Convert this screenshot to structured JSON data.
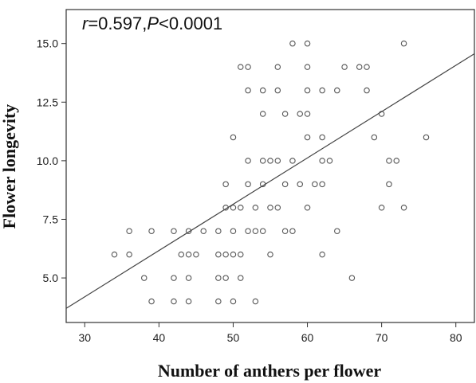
{
  "chart_data": {
    "type": "scatter",
    "annotation": {
      "r_label": "r",
      "r_value": "=0.597,",
      "p_label": "P",
      "p_value": "<0.0001"
    },
    "xlabel": "Number of anthers per flower",
    "ylabel": "Flower longevity",
    "xlim": [
      27.5,
      82.5
    ],
    "ylim": [
      3.1,
      16.45
    ],
    "xticks": [
      30,
      40,
      50,
      60,
      70,
      80
    ],
    "xtick_labels": [
      "30",
      "40",
      "50",
      "60",
      "70",
      "80"
    ],
    "yticks": [
      5.0,
      7.5,
      10.0,
      12.5,
      15.0
    ],
    "ytick_labels": [
      "5.0",
      "7.5",
      "10.0",
      "12.5",
      "15.0"
    ],
    "grid": false,
    "marker": "open-circle",
    "marker_color": "#555555",
    "regression_line": {
      "intercept": -1.73,
      "slope": 0.1975,
      "color": "#444444"
    },
    "points": [
      {
        "x": 58,
        "y": 15
      },
      {
        "x": 60,
        "y": 15
      },
      {
        "x": 73,
        "y": 15
      },
      {
        "x": 51,
        "y": 14
      },
      {
        "x": 52,
        "y": 14
      },
      {
        "x": 56,
        "y": 14
      },
      {
        "x": 60,
        "y": 14
      },
      {
        "x": 65,
        "y": 14
      },
      {
        "x": 67,
        "y": 14
      },
      {
        "x": 68,
        "y": 14
      },
      {
        "x": 52,
        "y": 13
      },
      {
        "x": 54,
        "y": 13
      },
      {
        "x": 56,
        "y": 13
      },
      {
        "x": 60,
        "y": 13
      },
      {
        "x": 62,
        "y": 13
      },
      {
        "x": 64,
        "y": 13
      },
      {
        "x": 68,
        "y": 13
      },
      {
        "x": 54,
        "y": 12
      },
      {
        "x": 57,
        "y": 12
      },
      {
        "x": 59,
        "y": 12
      },
      {
        "x": 60,
        "y": 12
      },
      {
        "x": 70,
        "y": 12
      },
      {
        "x": 50,
        "y": 11
      },
      {
        "x": 60,
        "y": 11
      },
      {
        "x": 62,
        "y": 11
      },
      {
        "x": 69,
        "y": 11
      },
      {
        "x": 76,
        "y": 11
      },
      {
        "x": 52,
        "y": 10
      },
      {
        "x": 54,
        "y": 10
      },
      {
        "x": 55,
        "y": 10
      },
      {
        "x": 56,
        "y": 10
      },
      {
        "x": 58,
        "y": 10
      },
      {
        "x": 62,
        "y": 10
      },
      {
        "x": 63,
        "y": 10
      },
      {
        "x": 71,
        "y": 10
      },
      {
        "x": 72,
        "y": 10
      },
      {
        "x": 49,
        "y": 9
      },
      {
        "x": 52,
        "y": 9
      },
      {
        "x": 54,
        "y": 9
      },
      {
        "x": 57,
        "y": 9
      },
      {
        "x": 59,
        "y": 9
      },
      {
        "x": 61,
        "y": 9
      },
      {
        "x": 62,
        "y": 9
      },
      {
        "x": 71,
        "y": 9
      },
      {
        "x": 49,
        "y": 8
      },
      {
        "x": 50,
        "y": 8
      },
      {
        "x": 51,
        "y": 8
      },
      {
        "x": 53,
        "y": 8
      },
      {
        "x": 55,
        "y": 8
      },
      {
        "x": 56,
        "y": 8
      },
      {
        "x": 60,
        "y": 8
      },
      {
        "x": 70,
        "y": 8
      },
      {
        "x": 73,
        "y": 8
      },
      {
        "x": 36,
        "y": 7
      },
      {
        "x": 39,
        "y": 7
      },
      {
        "x": 42,
        "y": 7
      },
      {
        "x": 44,
        "y": 7
      },
      {
        "x": 46,
        "y": 7
      },
      {
        "x": 48,
        "y": 7
      },
      {
        "x": 50,
        "y": 7
      },
      {
        "x": 52,
        "y": 7
      },
      {
        "x": 53,
        "y": 7
      },
      {
        "x": 54,
        "y": 7
      },
      {
        "x": 57,
        "y": 7
      },
      {
        "x": 58,
        "y": 7
      },
      {
        "x": 64,
        "y": 7
      },
      {
        "x": 34,
        "y": 6
      },
      {
        "x": 36,
        "y": 6
      },
      {
        "x": 43,
        "y": 6
      },
      {
        "x": 44,
        "y": 6
      },
      {
        "x": 45,
        "y": 6
      },
      {
        "x": 48,
        "y": 6
      },
      {
        "x": 49,
        "y": 6
      },
      {
        "x": 50,
        "y": 6
      },
      {
        "x": 51,
        "y": 6
      },
      {
        "x": 55,
        "y": 6
      },
      {
        "x": 62,
        "y": 6
      },
      {
        "x": 38,
        "y": 5
      },
      {
        "x": 42,
        "y": 5
      },
      {
        "x": 44,
        "y": 5
      },
      {
        "x": 48,
        "y": 5
      },
      {
        "x": 49,
        "y": 5
      },
      {
        "x": 51,
        "y": 5
      },
      {
        "x": 66,
        "y": 5
      },
      {
        "x": 39,
        "y": 4
      },
      {
        "x": 42,
        "y": 4
      },
      {
        "x": 44,
        "y": 4
      },
      {
        "x": 48,
        "y": 4
      },
      {
        "x": 50,
        "y": 4
      },
      {
        "x": 53,
        "y": 4
      }
    ]
  }
}
